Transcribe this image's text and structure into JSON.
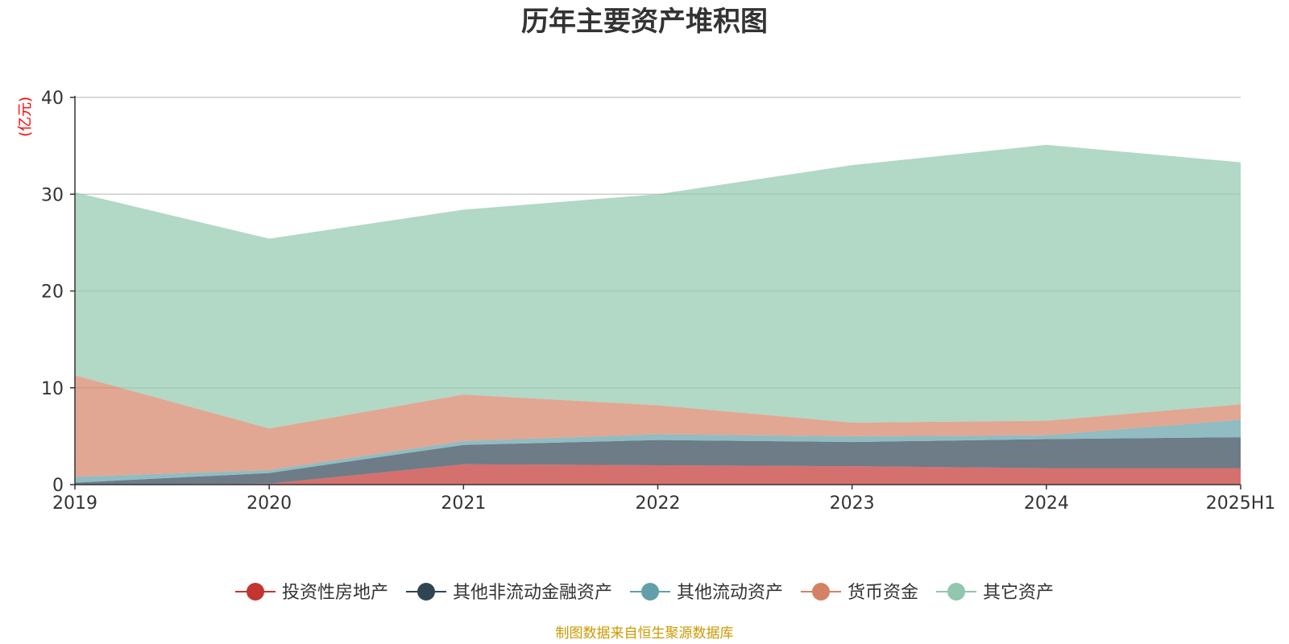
{
  "chart_data": {
    "type": "area",
    "stacked": true,
    "title": "历年主要资产堆积图",
    "unit": "(亿元)",
    "source": "制图数据来自恒生聚源数据库",
    "xlabel": "",
    "ylabel": "(亿元)",
    "ylim": [
      0,
      40
    ],
    "yticks": [
      0,
      10,
      20,
      30,
      40
    ],
    "categories": [
      "2019",
      "2020",
      "2021",
      "2022",
      "2023",
      "2024",
      "2025H1"
    ],
    "series": [
      {
        "name": "投资性房地产",
        "color": "#c23531",
        "values": [
          0.0,
          0.1,
          2.1,
          2.0,
          1.9,
          1.7,
          1.7
        ]
      },
      {
        "name": "其他非流动金融资产",
        "color": "#2f4554",
        "values": [
          0.2,
          1.1,
          2.0,
          2.6,
          2.5,
          3.0,
          3.2
        ]
      },
      {
        "name": "其他流动资产",
        "color": "#61a0a8",
        "values": [
          0.6,
          0.3,
          0.4,
          0.6,
          0.6,
          0.4,
          1.8
        ]
      },
      {
        "name": "货币资金",
        "color": "#d48265",
        "values": [
          10.5,
          4.3,
          4.8,
          3.0,
          1.4,
          1.5,
          1.6
        ]
      },
      {
        "name": "其它资产",
        "color": "#91c7ae",
        "values": [
          18.9,
          19.6,
          19.1,
          21.8,
          26.6,
          28.5,
          25.0
        ]
      }
    ]
  },
  "colors": {
    "title": "#333333",
    "axis": "#333333",
    "grid": "#cccccc",
    "unit": "#ff0000",
    "source": "#cc9900"
  }
}
